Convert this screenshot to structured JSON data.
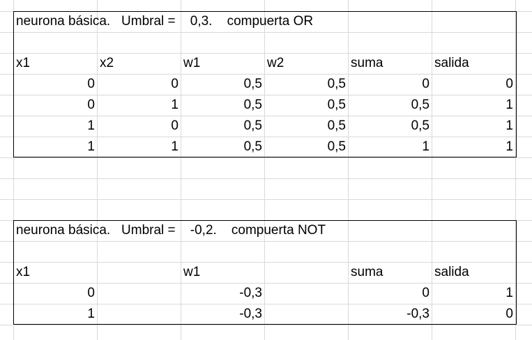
{
  "block_or": {
    "title": "neurona básica.   Umbral =    0,3.    compuerta OR",
    "headers": [
      "x1",
      "x2",
      "w1",
      "w2",
      "suma",
      "salida"
    ],
    "rows": [
      [
        "0",
        "0",
        "0,5",
        "0,5",
        "0",
        "0"
      ],
      [
        "0",
        "1",
        "0,5",
        "0,5",
        "0,5",
        "1"
      ],
      [
        "1",
        "0",
        "0,5",
        "0,5",
        "0,5",
        "1"
      ],
      [
        "1",
        "1",
        "0,5",
        "0,5",
        "1",
        "1"
      ]
    ]
  },
  "block_not": {
    "title": "neurona básica.   Umbral =    -0,2.    compuerta NOT",
    "headers": [
      "x1",
      "",
      "w1",
      "",
      "suma",
      "salida"
    ],
    "rows": [
      [
        "0",
        "",
        "-0,3",
        "",
        "0",
        "1"
      ],
      [
        "1",
        "",
        "-0,3",
        "",
        "-0,3",
        "0"
      ]
    ]
  },
  "colors": {
    "gridline": "#d9d9d9",
    "border": "#000000",
    "text": "#000000"
  }
}
